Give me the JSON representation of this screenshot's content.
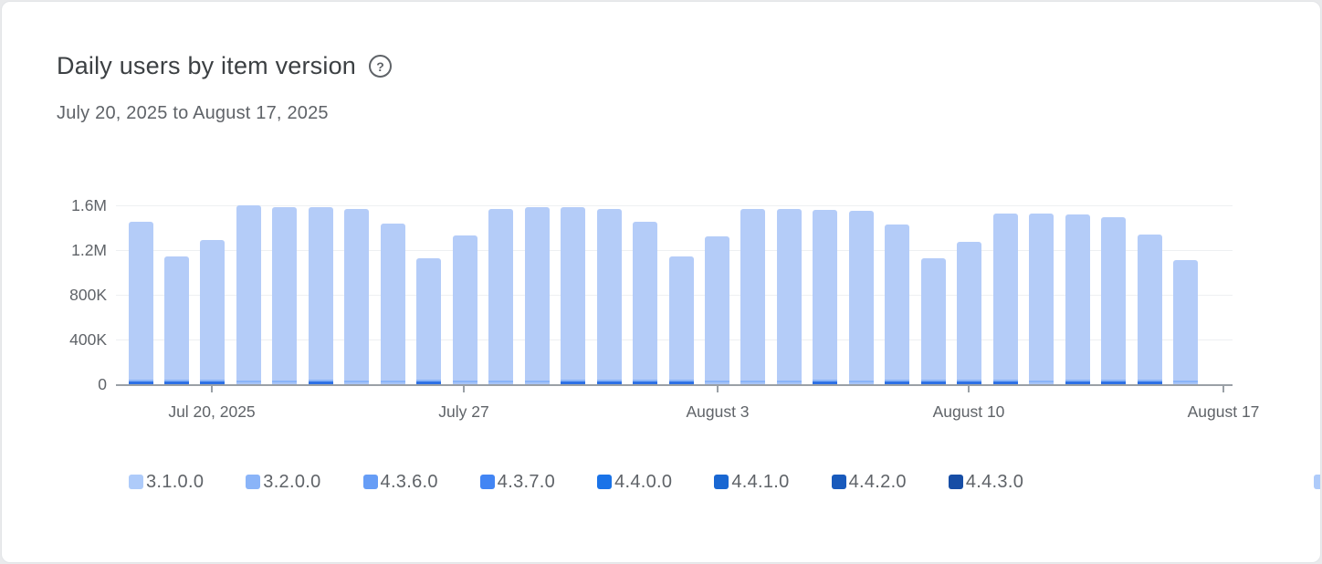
{
  "card": {
    "title": "Daily users by item version",
    "help_icon": "?",
    "date_range": "July 20, 2025 to August 17, 2025"
  },
  "colors": {
    "bar_body": "#b4ccf8",
    "bar_mid_strip": "#8ab4f8",
    "bar_accent_dark": "#2e71e5",
    "bar_accent_light": "#a7c4f8",
    "axis_line": "#9aa0a6",
    "grid_line": "#eef0f2",
    "text_primary": "#3c4043",
    "text_secondary": "#5f6368"
  },
  "chart_data": {
    "type": "bar",
    "stacked": true,
    "title": "Daily users by item version",
    "date_range_label": "July 20, 2025 to August 17, 2025",
    "grid": true,
    "legend_position": "bottom",
    "y_axis": {
      "min": 0,
      "max": 1600000,
      "tick_values": [
        0,
        400000,
        800000,
        1200000,
        1600000
      ],
      "tick_labels": [
        "0",
        "400K",
        "800K",
        "1.2M",
        "1.6M"
      ]
    },
    "x_axis": {
      "tick_labels": [
        "Jul 20, 2025",
        "July 27",
        "August 3",
        "August 10",
        "August 17"
      ]
    },
    "legend": {
      "items": [
        {
          "label": "3.1.0.0",
          "color": "#aecbfa"
        },
        {
          "label": "3.2.0.0",
          "color": "#8ab4f8"
        },
        {
          "label": "4.3.6.0",
          "color": "#669df6"
        },
        {
          "label": "4.3.7.0",
          "color": "#4285f4"
        },
        {
          "label": "4.4.0.0",
          "color": "#1a73e8"
        },
        {
          "label": "4.4.1.0",
          "color": "#1967d2"
        },
        {
          "label": "4.4.2.0",
          "color": "#185abc"
        },
        {
          "label": "4.4.3.0",
          "color": "#174ea6"
        }
      ],
      "truncated_item": {
        "label": "",
        "color": "#aecbfa"
      }
    },
    "segment_model": {
      "accent_dark_value": 25000,
      "accent_light_value": 20000,
      "mid_strip_value": 15000
    },
    "days": [
      {
        "date": "Jul 18",
        "total": 1450000,
        "accent": "dark"
      },
      {
        "date": "Jul 19",
        "total": 1140000,
        "accent": "dark"
      },
      {
        "date": "Jul 20",
        "total": 1290000,
        "accent": "dark"
      },
      {
        "date": "Jul 21",
        "total": 1600000,
        "accent": "light"
      },
      {
        "date": "Jul 22",
        "total": 1580000,
        "accent": "light"
      },
      {
        "date": "Jul 23",
        "total": 1580000,
        "accent": "dark"
      },
      {
        "date": "Jul 24",
        "total": 1570000,
        "accent": "light"
      },
      {
        "date": "Jul 25",
        "total": 1440000,
        "accent": "light"
      },
      {
        "date": "Jul 26",
        "total": 1130000,
        "accent": "dark"
      },
      {
        "date": "Jul 27",
        "total": 1330000,
        "accent": "light"
      },
      {
        "date": "Jul 28",
        "total": 1570000,
        "accent": "light"
      },
      {
        "date": "Jul 29",
        "total": 1580000,
        "accent": "light"
      },
      {
        "date": "Jul 30",
        "total": 1580000,
        "accent": "dark"
      },
      {
        "date": "Jul 31",
        "total": 1570000,
        "accent": "dark"
      },
      {
        "date": "Aug 1",
        "total": 1450000,
        "accent": "dark"
      },
      {
        "date": "Aug 2",
        "total": 1140000,
        "accent": "dark"
      },
      {
        "date": "Aug 3",
        "total": 1320000,
        "accent": "light"
      },
      {
        "date": "Aug 4",
        "total": 1570000,
        "accent": "light"
      },
      {
        "date": "Aug 5",
        "total": 1570000,
        "accent": "light"
      },
      {
        "date": "Aug 6",
        "total": 1560000,
        "accent": "dark"
      },
      {
        "date": "Aug 7",
        "total": 1550000,
        "accent": "light"
      },
      {
        "date": "Aug 8",
        "total": 1430000,
        "accent": "dark"
      },
      {
        "date": "Aug 9",
        "total": 1130000,
        "accent": "dark"
      },
      {
        "date": "Aug 10",
        "total": 1270000,
        "accent": "dark"
      },
      {
        "date": "Aug 11",
        "total": 1530000,
        "accent": "dark"
      },
      {
        "date": "Aug 12",
        "total": 1530000,
        "accent": "light"
      },
      {
        "date": "Aug 13",
        "total": 1520000,
        "accent": "dark"
      },
      {
        "date": "Aug 14",
        "total": 1490000,
        "accent": "dark"
      },
      {
        "date": "Aug 15",
        "total": 1340000,
        "accent": "dark"
      },
      {
        "date": "Aug 16",
        "total": 1110000,
        "accent": "light"
      }
    ]
  }
}
